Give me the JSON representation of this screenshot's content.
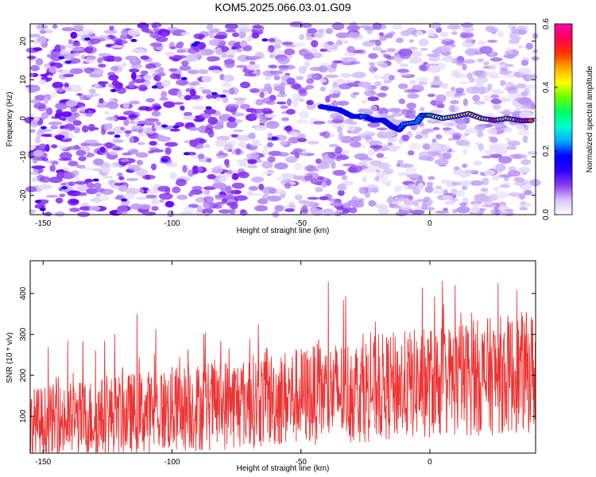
{
  "figure": {
    "title": "KOM5.2025.066.03.01.G09"
  },
  "chart_data": [
    {
      "type": "heatmap",
      "xlabel": "Height of straight line (km)",
      "ylabel": "Frequency (Hz)",
      "xlim": [
        -155,
        41
      ],
      "ylim": [
        -25,
        24.5
      ],
      "xticks": [
        -150,
        -100,
        -50,
        0
      ],
      "yticks": [
        -20,
        -10,
        0,
        10,
        20
      ],
      "colormap": [
        "#ffffff",
        "#e6dcfa",
        "#b993f5",
        "#8a3df0",
        "#6a00ff",
        "#0000ff",
        "#00aaff",
        "#00ffcc",
        "#00ff00",
        "#ffff00",
        "#ff8800",
        "#ff0000",
        "#ff00aa"
      ],
      "track": {
        "x": [
          -42,
          -35,
          -30,
          -25,
          -22,
          -18,
          -15,
          -12,
          -10,
          -5,
          -3,
          0,
          5,
          10,
          15,
          20,
          25,
          30,
          35,
          40
        ],
        "y": [
          3,
          2.2,
          0.5,
          0.5,
          -0.5,
          -0.5,
          -2,
          -3,
          -1.5,
          -1,
          0.8,
          0.8,
          0,
          0.5,
          1.2,
          0,
          -0.5,
          0,
          -0.6,
          -0.6
        ],
        "amplitude": [
          0.2,
          0.22,
          0.2,
          0.25,
          0.2,
          0.22,
          0.2,
          0.22,
          0.28,
          0.3,
          0.35,
          0.4,
          0.45,
          0.48,
          0.52,
          0.5,
          0.55,
          0.5,
          0.55,
          0.6
        ]
      },
      "colorbar": {
        "label": "Normalized spectral amplitude",
        "min": 0.0,
        "max": 0.6,
        "ticks": [
          "0.0",
          "0.2",
          "0.4",
          "0.6"
        ]
      }
    },
    {
      "type": "line",
      "xlabel": "Height of straight line (km)",
      "ylabel": "SNR (10 * v/v)",
      "xlim": [
        -155,
        41
      ],
      "ylim": [
        10,
        480
      ],
      "xticks": [
        -150,
        -100,
        -50,
        0
      ],
      "yticks": [
        100,
        200,
        300,
        400
      ],
      "series": [
        {
          "color": "#ee3333",
          "baseline_start": 80,
          "baseline_end": 210
        }
      ]
    }
  ]
}
